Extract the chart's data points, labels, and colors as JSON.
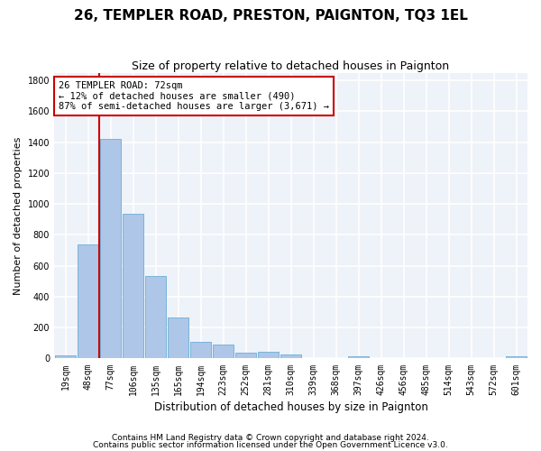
{
  "title": "26, TEMPLER ROAD, PRESTON, PAIGNTON, TQ3 1EL",
  "subtitle": "Size of property relative to detached houses in Paignton",
  "xlabel": "Distribution of detached houses by size in Paignton",
  "ylabel": "Number of detached properties",
  "categories": [
    "19sqm",
    "48sqm",
    "77sqm",
    "106sqm",
    "135sqm",
    "165sqm",
    "194sqm",
    "223sqm",
    "252sqm",
    "281sqm",
    "310sqm",
    "339sqm",
    "368sqm",
    "397sqm",
    "426sqm",
    "456sqm",
    "485sqm",
    "514sqm",
    "543sqm",
    "572sqm",
    "601sqm"
  ],
  "values": [
    22,
    740,
    1420,
    937,
    533,
    265,
    105,
    92,
    40,
    42,
    28,
    0,
    0,
    15,
    0,
    0,
    0,
    0,
    0,
    0,
    15
  ],
  "bar_color": "#aec6e8",
  "bar_edge_color": "#6aaed6",
  "vline_color": "#cc0000",
  "vline_pos": 1.5,
  "annotation_text": "26 TEMPLER ROAD: 72sqm\n← 12% of detached houses are smaller (490)\n87% of semi-detached houses are larger (3,671) →",
  "annotation_box_facecolor": "#ffffff",
  "annotation_box_edgecolor": "#cc0000",
  "footer1": "Contains HM Land Registry data © Crown copyright and database right 2024.",
  "footer2": "Contains public sector information licensed under the Open Government Licence v3.0.",
  "ylim": [
    0,
    1850
  ],
  "yticks": [
    0,
    200,
    400,
    600,
    800,
    1000,
    1200,
    1400,
    1600,
    1800
  ],
  "bg_color": "#eef2f9",
  "grid_color": "#ffffff",
  "fig_bg_color": "#ffffff",
  "title_fontsize": 11,
  "subtitle_fontsize": 9,
  "ylabel_fontsize": 8,
  "xlabel_fontsize": 8.5,
  "tick_fontsize": 7,
  "annotation_fontsize": 7.5,
  "footer_fontsize": 6.5
}
